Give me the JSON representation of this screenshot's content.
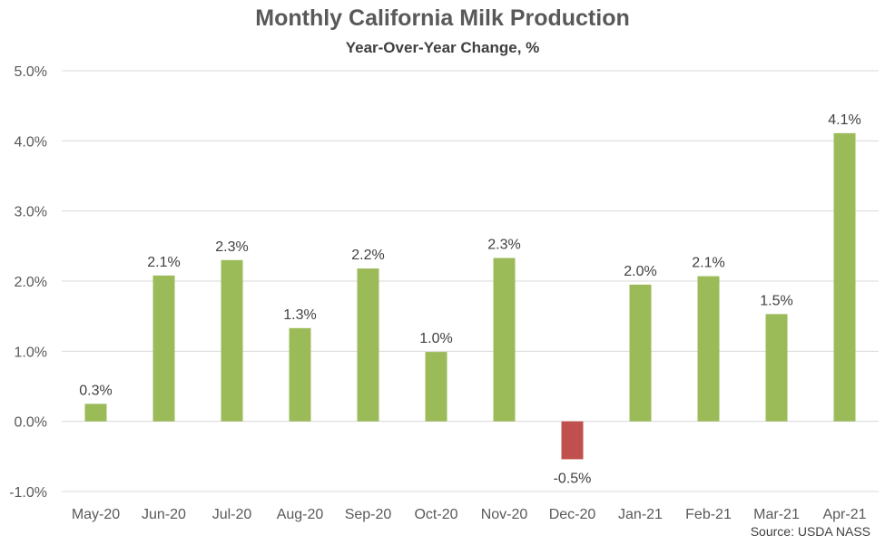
{
  "chart_data": {
    "type": "bar",
    "title": "Monthly California Milk Production",
    "subtitle": "Year-Over-Year Change, %",
    "categories": [
      "May-20",
      "Jun-20",
      "Jul-20",
      "Aug-20",
      "Sep-20",
      "Oct-20",
      "Nov-20",
      "Dec-20",
      "Jan-21",
      "Feb-21",
      "Mar-21",
      "Apr-21"
    ],
    "values": [
      0.25,
      2.08,
      2.3,
      1.33,
      2.18,
      0.99,
      2.33,
      -0.54,
      1.95,
      2.07,
      1.53,
      4.11
    ],
    "data_labels": [
      "0.3%",
      "2.1%",
      "2.3%",
      "1.3%",
      "2.2%",
      "1.0%",
      "2.3%",
      "-0.5%",
      "2.0%",
      "2.1%",
      "1.5%",
      "4.1%"
    ],
    "y_ticks": [
      -1,
      0,
      1,
      2,
      3,
      4,
      5
    ],
    "y_tick_labels": [
      "-1.0%",
      "0.0%",
      "1.0%",
      "2.0%",
      "3.0%",
      "4.0%",
      "5.0%"
    ],
    "ylim": [
      -1,
      5
    ],
    "grid": true,
    "legend": "none",
    "source": "Source: USDA NASS",
    "colors": {
      "positive": "#9bbb59",
      "negative": "#c0504d",
      "grid": "#d9d9d9"
    }
  }
}
